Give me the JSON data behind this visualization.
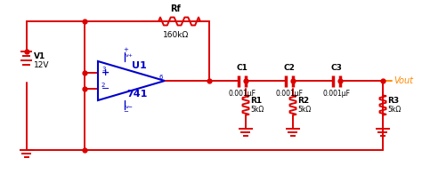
{
  "bg_color": "#ffffff",
  "red": "#dd0000",
  "blue": "#0000cc",
  "orange": "#ff8800",
  "black": "#000000",
  "fig_w": 4.74,
  "fig_h": 1.96,
  "dpi": 100,
  "V1_label": "V1",
  "V1_val": "12V",
  "U1_label": "U1",
  "opamp_label": "741",
  "Rf_label": "Rf",
  "Rf_val": "160kΩ",
  "C1_label": "C1",
  "C1_val": "0.001μF",
  "C2_label": "C2",
  "C2_val": "0.001μF",
  "C3_label": "C3",
  "C3_val": "0.001μF",
  "R1_label": "R1",
  "R1_val": "5kΩ",
  "R2_label": "R2",
  "R2_val": "5kΩ",
  "R3_label": "R3",
  "R3_val": "5kΩ",
  "Vout_label": "Vout"
}
